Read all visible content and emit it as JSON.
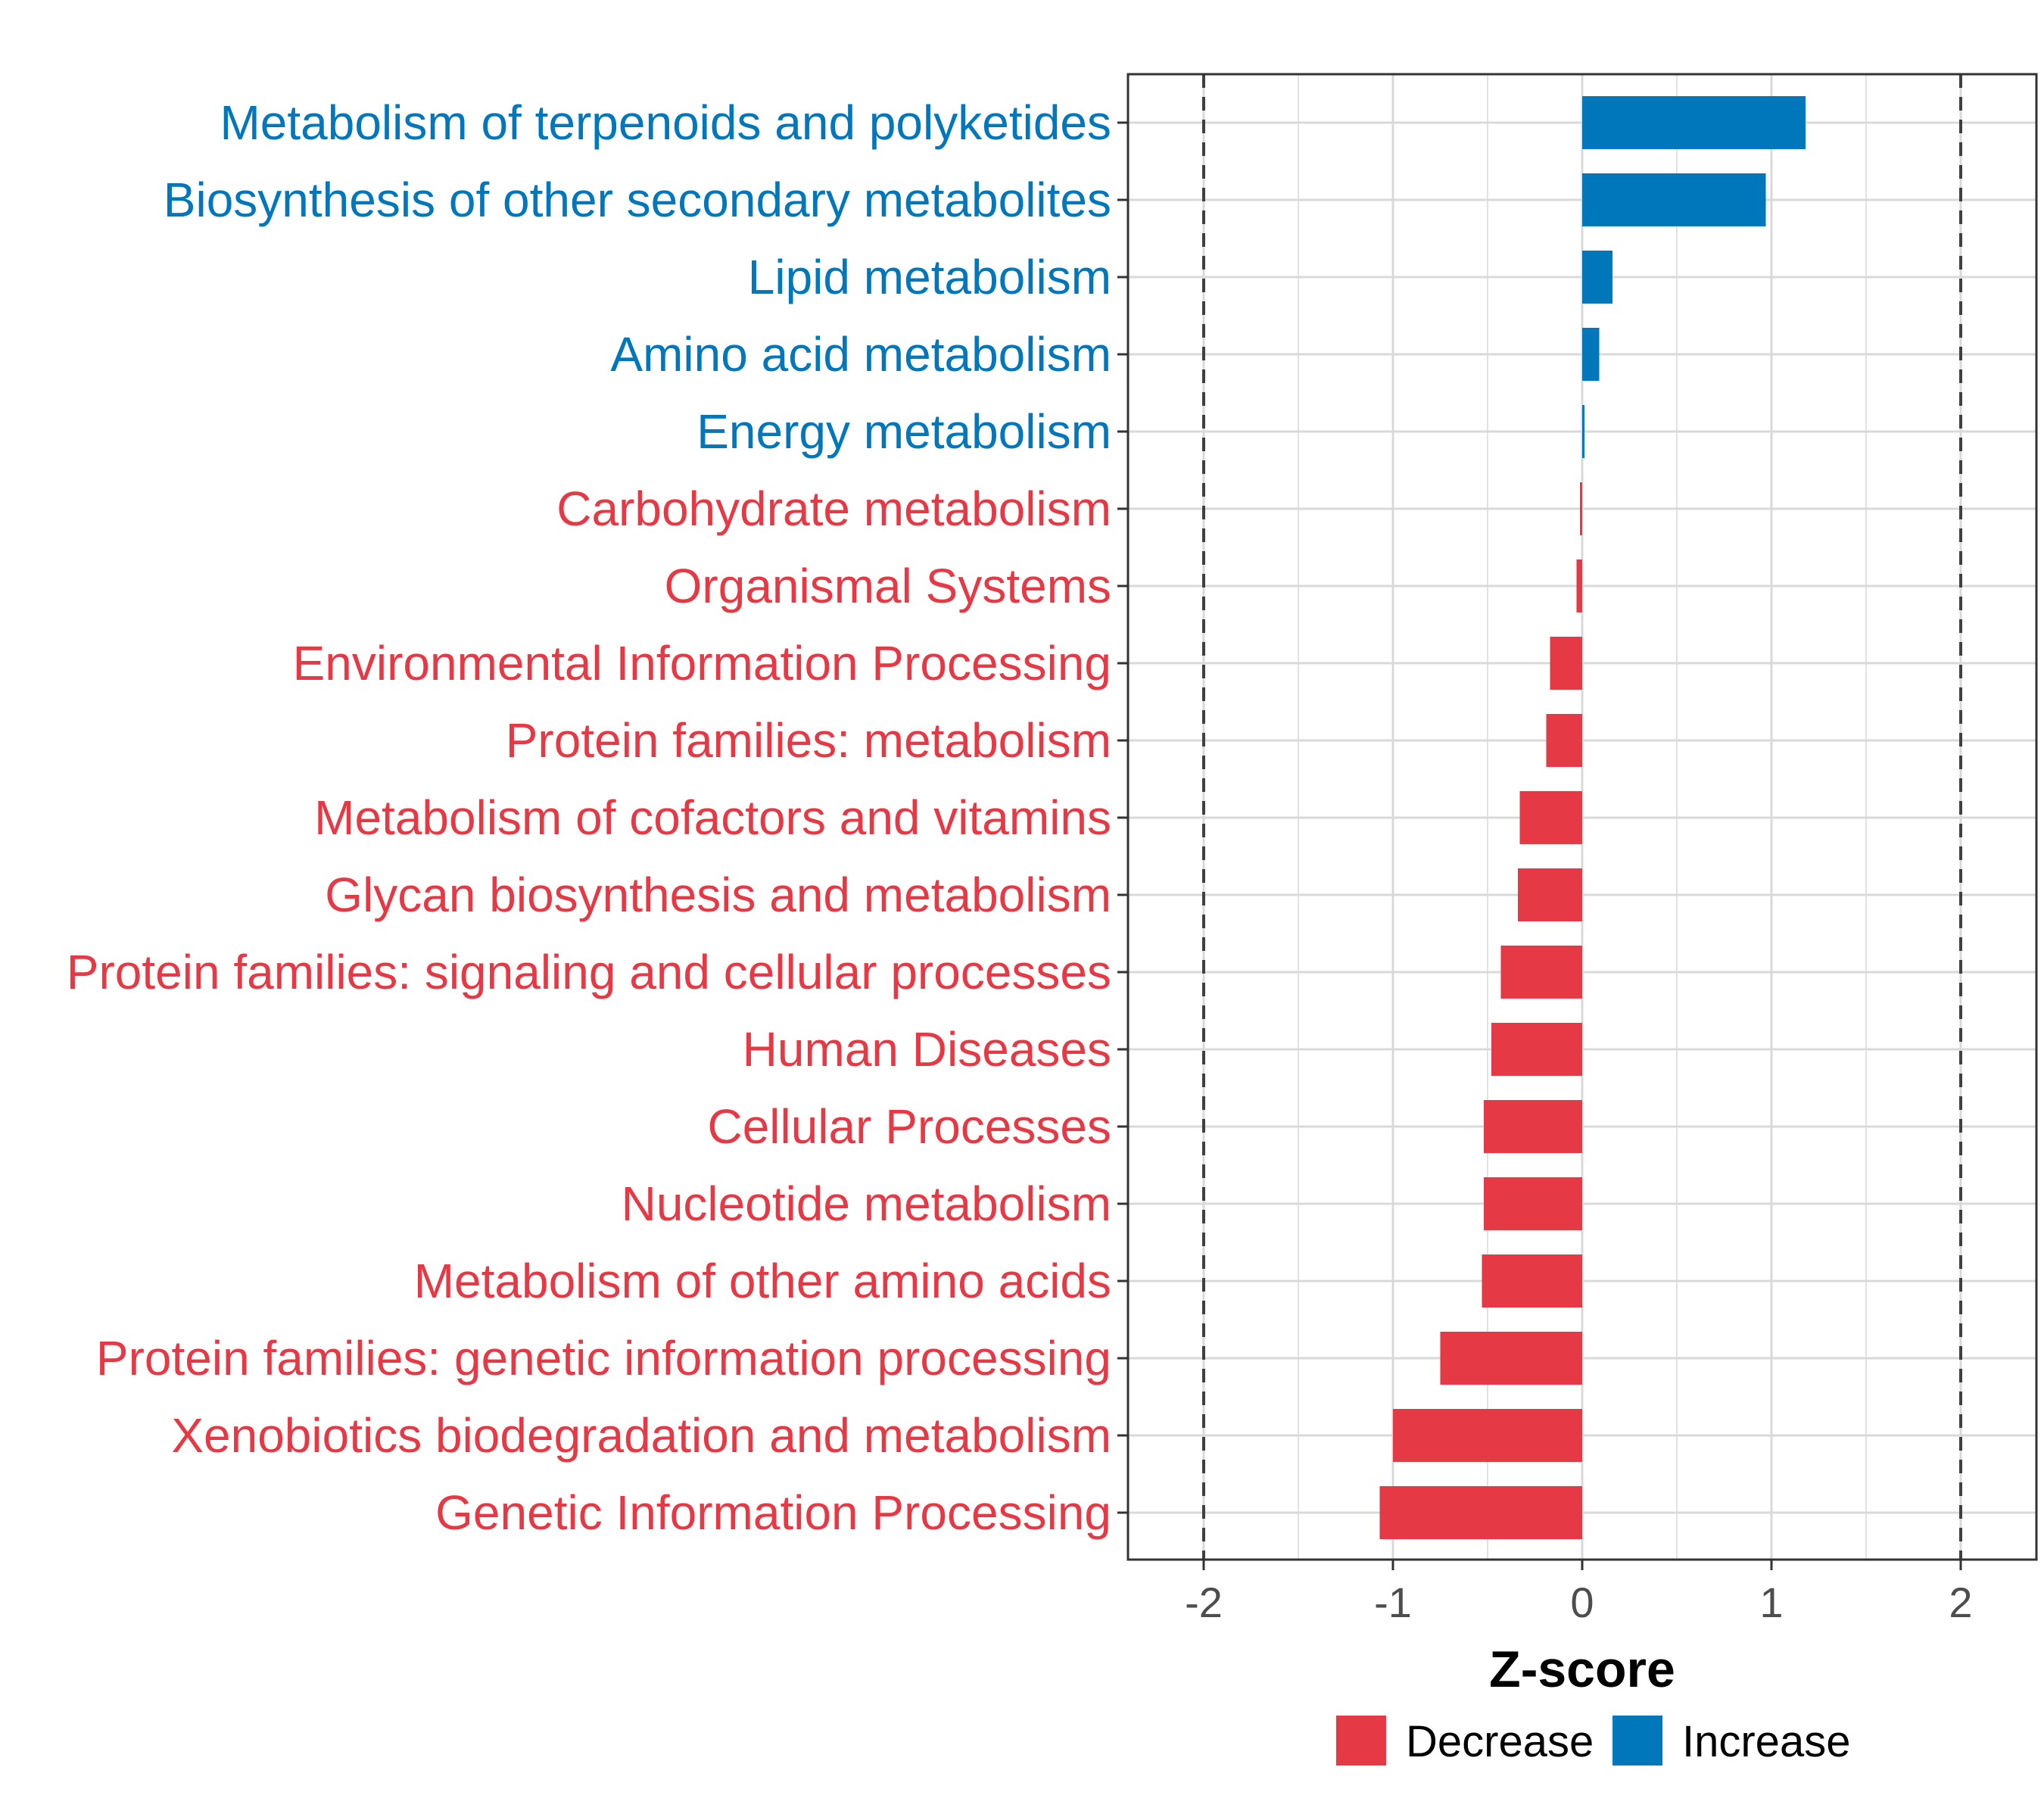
{
  "colors": {
    "decrease": "#E63946",
    "increase": "#0077BB",
    "grid": "#D9D9D9",
    "reference_line": "#404040",
    "panel_border": "#333333"
  },
  "chart_data": {
    "type": "bar",
    "orientation": "horizontal",
    "title": "",
    "xlabel": "Z-score",
    "ylabel": "",
    "xlim": [
      -2.4,
      2.4
    ],
    "x_ticks": [
      "-2",
      "-1",
      "0",
      "1",
      "2"
    ],
    "x_tick_values": [
      -2,
      -1,
      0,
      1,
      2
    ],
    "reference_lines": [
      -2,
      2
    ],
    "grid": true,
    "legend_position": "bottom",
    "legend": [
      {
        "name": "Decrease",
        "color_key": "decrease"
      },
      {
        "name": "Increase",
        "color_key": "increase"
      }
    ],
    "categories": [
      "Metabolism of terpenoids and polyketides",
      "Biosynthesis of other secondary metabolites",
      "Lipid metabolism",
      "Amino acid metabolism",
      "Energy metabolism",
      "Carbohydrate metabolism",
      "Organismal Systems",
      "Environmental Information Processing",
      "Protein families: metabolism",
      "Metabolism of cofactors and vitamins",
      "Glycan biosynthesis and metabolism",
      "Protein families: signaling and cellular processes",
      "Human Diseases",
      "Cellular Processes",
      "Nucleotide metabolism",
      "Metabolism of other amino acids",
      "Protein families: genetic information processing",
      "Xenobiotics biodegradation and metabolism",
      "Genetic Information Processing"
    ],
    "values": [
      1.18,
      0.97,
      0.16,
      0.09,
      0.01,
      -0.01,
      -0.03,
      -0.17,
      -0.19,
      -0.33,
      -0.34,
      -0.43,
      -0.48,
      -0.52,
      -0.52,
      -0.53,
      -0.75,
      -1.0,
      -1.07
    ],
    "groups": [
      "Increase",
      "Increase",
      "Increase",
      "Increase",
      "Increase",
      "Decrease",
      "Decrease",
      "Decrease",
      "Decrease",
      "Decrease",
      "Decrease",
      "Decrease",
      "Decrease",
      "Decrease",
      "Decrease",
      "Decrease",
      "Decrease",
      "Decrease",
      "Decrease"
    ]
  }
}
